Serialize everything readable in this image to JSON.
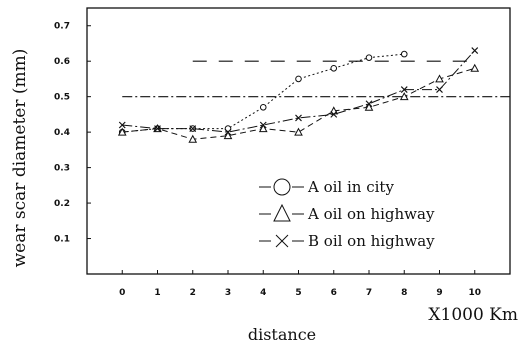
{
  "chart_data": {
    "type": "line",
    "ylabel": "wear scar diameter (mm)",
    "xlabel": "distance",
    "x_unit": "X1000 Km",
    "x": [
      0,
      1,
      2,
      3,
      4,
      5,
      6,
      7,
      8,
      9,
      10
    ],
    "xlim": [
      -1,
      11
    ],
    "ylim": [
      0,
      0.75
    ],
    "xticks": [
      "0",
      "1",
      "2",
      "3",
      "4",
      "5",
      "6",
      "7",
      "8",
      "9",
      "10"
    ],
    "yticks": [
      "0.1",
      "0.2",
      "0.3",
      "0.4",
      "0.5",
      "0.6",
      "0.7"
    ],
    "grid": false,
    "legend_position": "bottom-right",
    "series": [
      {
        "name": "A oil in city",
        "marker": "circle",
        "line_style": "dotted",
        "x": [
          0,
          1,
          2,
          3,
          4,
          5,
          6,
          7,
          8
        ],
        "values": [
          0.4,
          0.41,
          0.41,
          0.41,
          0.47,
          0.55,
          0.58,
          0.61,
          0.62
        ]
      },
      {
        "name": "A oil on highway",
        "marker": "triangle",
        "line_style": "dashed",
        "x": [
          0,
          1,
          2,
          3,
          4,
          5,
          6,
          7,
          8,
          9,
          10
        ],
        "values": [
          0.4,
          0.41,
          0.38,
          0.39,
          0.41,
          0.4,
          0.46,
          0.47,
          0.5,
          0.55,
          0.58
        ]
      },
      {
        "name": "B oil on highway",
        "marker": "cross",
        "line_style": "dash-dot",
        "x": [
          0,
          1,
          2,
          3,
          4,
          5,
          6,
          7,
          8,
          9,
          10
        ],
        "values": [
          0.42,
          0.41,
          0.41,
          0.4,
          0.42,
          0.44,
          0.45,
          0.48,
          0.52,
          0.52,
          0.63
        ]
      }
    ],
    "reference_lines": [
      {
        "y": 0.6,
        "x_range": [
          2,
          10
        ],
        "style": "long-dash"
      },
      {
        "y": 0.5,
        "x_range": [
          0,
          11
        ],
        "style": "dash-dot"
      }
    ]
  }
}
